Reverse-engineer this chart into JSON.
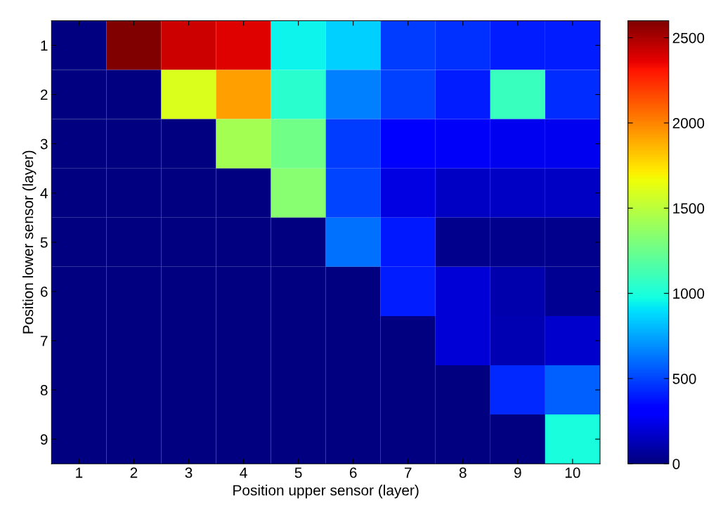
{
  "chart_data": {
    "type": "heatmap",
    "xlabel": "Position upper sensor (layer)",
    "ylabel": "Position lower sensor (layer)",
    "categories": [
      "1",
      "2",
      "3",
      "4",
      "5",
      "6",
      "7",
      "8",
      "9",
      "10"
    ],
    "y_categories": [
      "1",
      "2",
      "3",
      "4",
      "5",
      "6",
      "7",
      "8",
      "9"
    ],
    "cells": [
      [
        0,
        2600,
        2420,
        2380,
        950,
        860,
        480,
        450,
        400,
        400
      ],
      [
        0,
        0,
        1600,
        1920,
        1040,
        650,
        490,
        400,
        1090,
        440
      ],
      [
        0,
        0,
        0,
        1430,
        1260,
        480,
        330,
        280,
        260,
        260
      ],
      [
        0,
        0,
        0,
        0,
        1340,
        500,
        230,
        160,
        160,
        160
      ],
      [
        0,
        0,
        0,
        0,
        0,
        610,
        390,
        40,
        40,
        40
      ],
      [
        0,
        0,
        0,
        0,
        0,
        0,
        400,
        195,
        105,
        50
      ],
      [
        0,
        0,
        0,
        0,
        0,
        0,
        0,
        195,
        120,
        180
      ],
      [
        0,
        0,
        0,
        0,
        0,
        0,
        0,
        0,
        430,
        570
      ],
      [
        0,
        0,
        0,
        0,
        0,
        0,
        0,
        0,
        0,
        990
      ]
    ],
    "clim": [
      0,
      2600
    ],
    "cticks": [
      0,
      500,
      1000,
      1500,
      2000,
      2500
    ]
  }
}
